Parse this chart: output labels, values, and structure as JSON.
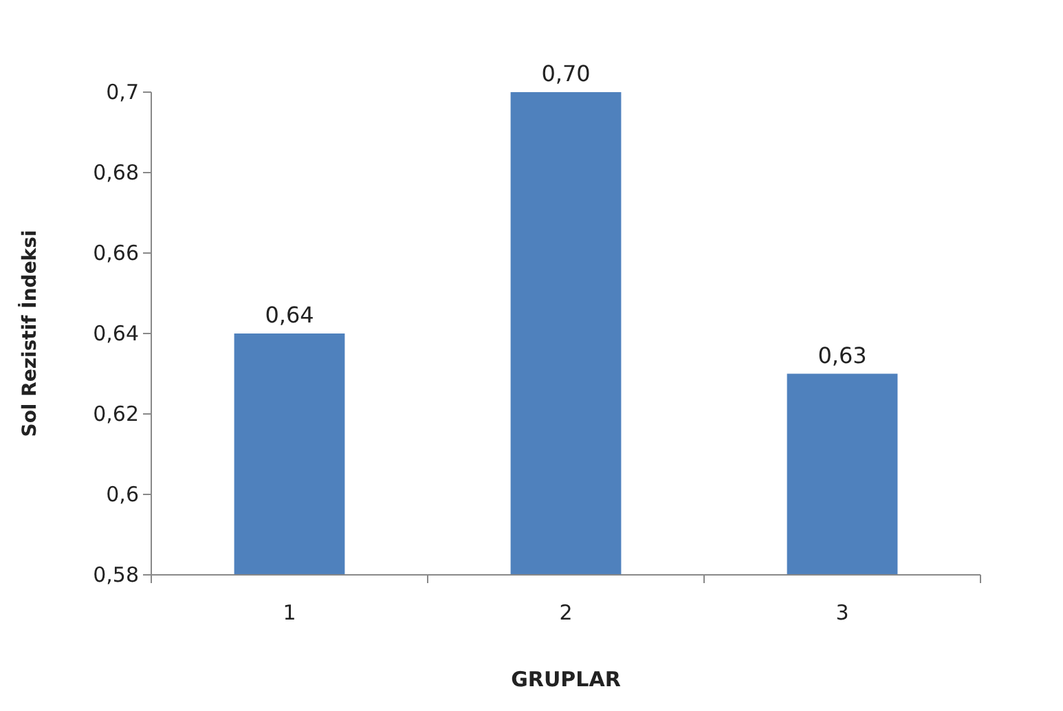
{
  "chart_data": {
    "type": "bar",
    "xlabel": "GRUPLAR",
    "ylabel": "Sol Rezistif İndeksi",
    "categories": [
      "1",
      "2",
      "3"
    ],
    "values": [
      0.64,
      0.7,
      0.63
    ],
    "value_labels": [
      "0,64",
      "0,70",
      "0,63"
    ],
    "color": "#4f81bd",
    "ylim": [
      0.58,
      0.7
    ],
    "yticks": [
      {
        "value": 0.58,
        "label": "0,58"
      },
      {
        "value": 0.6,
        "label": "0,6"
      },
      {
        "value": 0.62,
        "label": "0,62"
      },
      {
        "value": 0.64,
        "label": "0,64"
      },
      {
        "value": 0.66,
        "label": "0,66"
      },
      {
        "value": 0.68,
        "label": "0,68"
      },
      {
        "value": 0.7,
        "label": "0,7"
      }
    ],
    "grid": false
  }
}
